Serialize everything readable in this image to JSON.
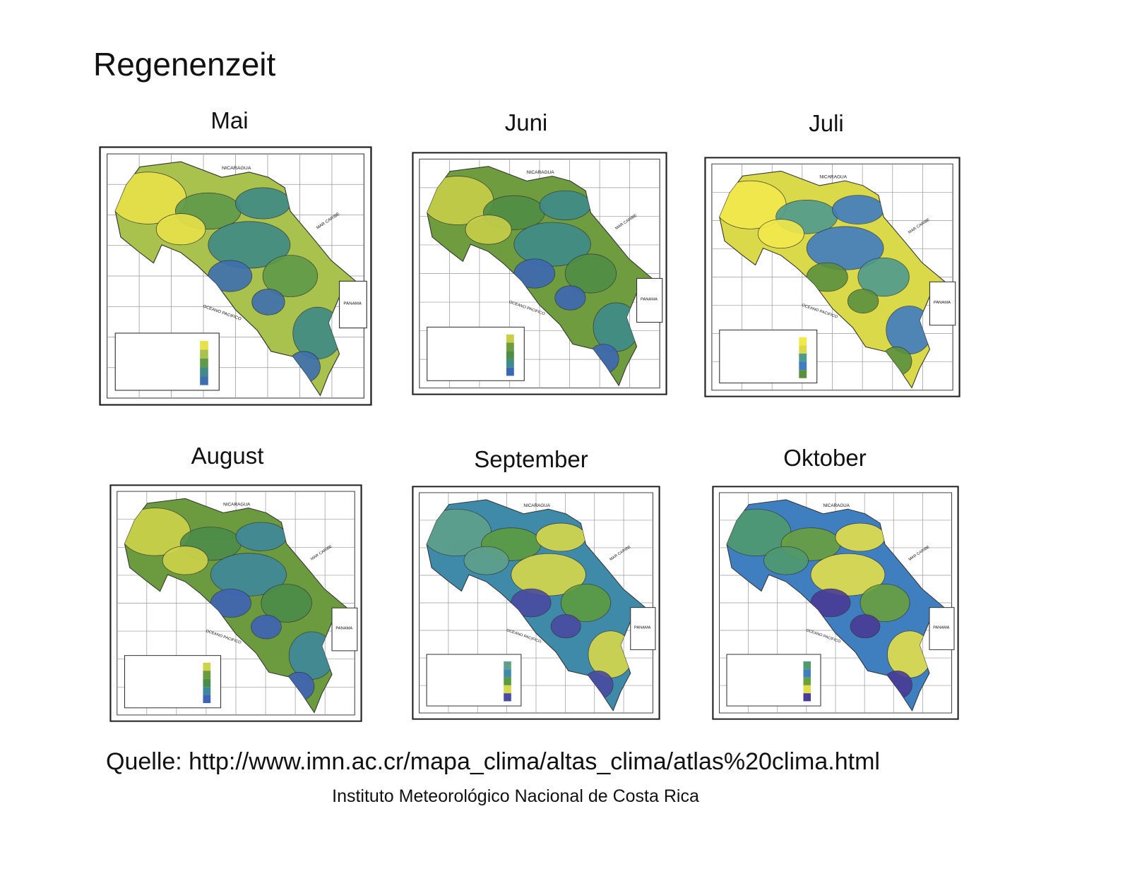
{
  "header": {
    "title": "Regenenzeit"
  },
  "maps": [
    {
      "title": "Mai",
      "labels": {
        "north": "NICARAGUA",
        "south": "PANAMA",
        "ocean": "OCEANO PACIFICO",
        "sea": "MAR CARIBE"
      }
    },
    {
      "title": "Juni",
      "labels": {
        "north": "NICARAGUA",
        "south": "PANAMA",
        "ocean": "OCEANO PACIFICO",
        "sea": "MAR CARIBE"
      }
    },
    {
      "title": "Juli",
      "labels": {
        "north": "NICARAGUA",
        "south": "PANAMA",
        "ocean": "OCEANO PACIFICO",
        "sea": "MAR CARIBE"
      }
    },
    {
      "title": "August",
      "labels": {
        "north": "NICARAGUA",
        "south": "PANAMA",
        "ocean": "OCEANO PACIFICO",
        "sea": "MAR CARIBE"
      }
    },
    {
      "title": "September",
      "labels": {
        "north": "NICARAGUA",
        "south": "PANAMA",
        "ocean": "OCEANO PACIFICO",
        "sea": "MAR CARIBE"
      }
    },
    {
      "title": "Oktober",
      "labels": {
        "north": "NICARAGUA",
        "south": "PANAMA",
        "ocean": "OCEANO PACIFICO",
        "sea": "MAR CARIBE"
      }
    }
  ],
  "footer": {
    "source": "Quelle: http://www.imn.ac.cr/mapa_clima/altas_clima/atlas%20clima.html",
    "institute": "Instituto Meteorológico Nacional de Costa Rica"
  }
}
